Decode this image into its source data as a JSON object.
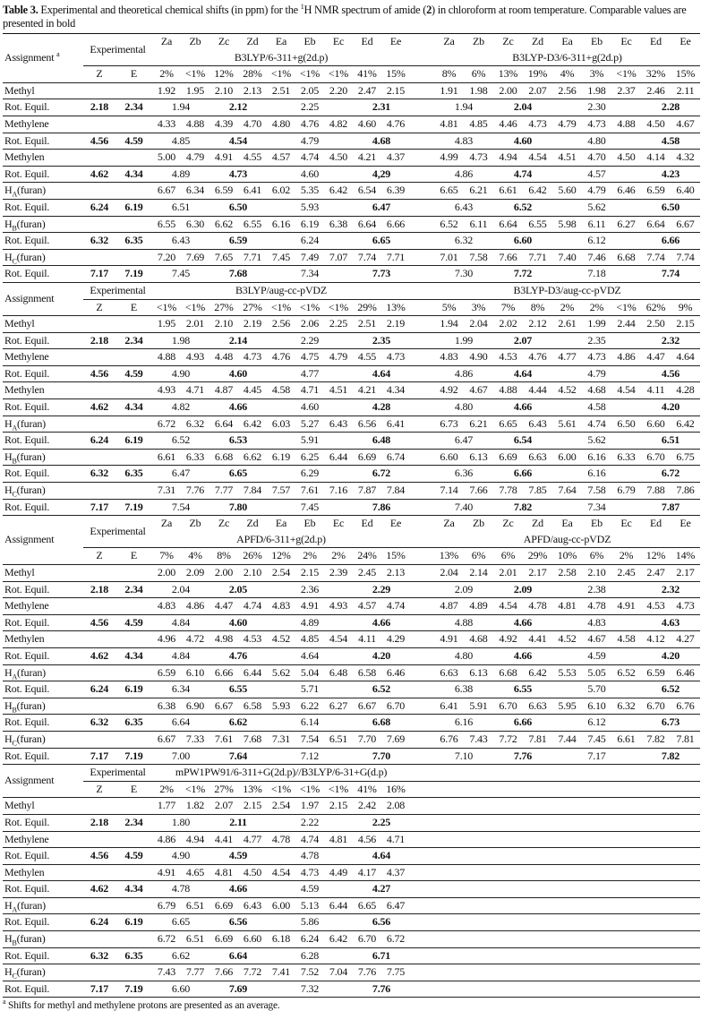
{
  "title": {
    "label": "Table 3.",
    "pre": " Experimental and theoretical chemical shifts (in ppm) for the ",
    "sup": "1",
    "mid": "H NMR spectrum of amide (",
    "bold": "2",
    "post": ") in chloroform at room temperature. Comparable values are presented in bold"
  },
  "labels": {
    "assignment": "Assignment",
    "assignment_note": "a",
    "experimental": "Experimental",
    "z": "Z",
    "e": "E",
    "rot": "Rot. Equil."
  },
  "conformers": [
    "Za",
    "Zb",
    "Zc",
    "Zd",
    "Ea",
    "Eb",
    "Ec",
    "Ed",
    "Ee"
  ],
  "rows": [
    {
      "label": "Methyl",
      "sub": "",
      "suffix": "",
      "exp": [
        "2.18",
        "2.34"
      ]
    },
    {
      "label": "Methylene",
      "sub": "",
      "suffix": "",
      "exp": [
        "4.56",
        "4.59"
      ]
    },
    {
      "label": "Methylen",
      "sub": "",
      "suffix": "",
      "exp": [
        "4.62",
        "4.34"
      ]
    },
    {
      "label": "H",
      "sub": "A",
      "suffix": "(furan)",
      "exp": [
        "6.24",
        "6.19"
      ]
    },
    {
      "label": "H",
      "sub": "B",
      "suffix": "(furan)",
      "exp": [
        "6.32",
        "6.35"
      ]
    },
    {
      "label": "H",
      "sub": "C",
      "suffix": "(furan)",
      "exp": [
        "7.17",
        "7.19"
      ]
    }
  ],
  "blocks": [
    {
      "show_conformers": true,
      "show_note": true,
      "methods": [
        {
          "name": "B3LYP/6-311+g(2d.p)",
          "pops": [
            "2%",
            "<1%",
            "12%",
            "28%",
            "<1%",
            "<1%",
            "<1%",
            "41%",
            "15%"
          ],
          "values": [
            [
              "1.92",
              "1.95",
              "2.10",
              "2.13",
              "2.51",
              "2.05",
              "2.20",
              "2.47",
              "2.15"
            ],
            [
              "4.33",
              "4.88",
              "4.39",
              "4.70",
              "4.80",
              "4.76",
              "4.82",
              "4.60",
              "4.76"
            ],
            [
              "5.00",
              "4.79",
              "4.91",
              "4.55",
              "4.57",
              "4.74",
              "4.50",
              "4.21",
              "4.37"
            ],
            [
              "6.67",
              "6.34",
              "6.59",
              "6.41",
              "6.02",
              "5.35",
              "6.42",
              "6.54",
              "6.39"
            ],
            [
              "6.55",
              "6.30",
              "6.62",
              "6.55",
              "6.16",
              "6.19",
              "6.38",
              "6.64",
              "6.66"
            ],
            [
              "7.20",
              "7.69",
              "7.65",
              "7.71",
              "7.45",
              "7.49",
              "7.07",
              "7.74",
              "7.71"
            ]
          ],
          "rot": [
            [
              "1.94",
              "2.12",
              "2.25",
              "2.31"
            ],
            [
              "4.85",
              "4.54",
              "4.79",
              "4.68"
            ],
            [
              "4.89",
              "4.73",
              "4.60",
              "4,29"
            ],
            [
              "6.51",
              "6.50",
              "5.93",
              "6.47"
            ],
            [
              "6.43",
              "6.59",
              "6.24",
              "6.65"
            ],
            [
              "7.45",
              "7.68",
              "7.34",
              "7.73"
            ]
          ]
        },
        {
          "name": "B3LYP-D3/6-311+g(2d.p)",
          "pops": [
            "8%",
            "6%",
            "13%",
            "19%",
            "4%",
            "3%",
            "<1%",
            "32%",
            "15%"
          ],
          "values": [
            [
              "1.91",
              "1.98",
              "2.00",
              "2.07",
              "2.56",
              "1.98",
              "2.37",
              "2.46",
              "2.11"
            ],
            [
              "4.81",
              "4.85",
              "4.46",
              "4.73",
              "4.79",
              "4.73",
              "4.88",
              "4.50",
              "4.67"
            ],
            [
              "4.99",
              "4.73",
              "4.94",
              "4.54",
              "4.51",
              "4.70",
              "4.50",
              "4.14",
              "4.32"
            ],
            [
              "6.65",
              "6.21",
              "6.61",
              "6.42",
              "5.60",
              "4.79",
              "6.46",
              "6.59",
              "6.40"
            ],
            [
              "6.52",
              "6.11",
              "6.64",
              "6.55",
              "5.98",
              "6.11",
              "6.27",
              "6.64",
              "6.67"
            ],
            [
              "7.01",
              "7.58",
              "7.66",
              "7.71",
              "7.40",
              "7.46",
              "6.68",
              "7.74",
              "7.74"
            ]
          ],
          "rot": [
            [
              "1.94",
              "2.04",
              "2.30",
              "2.28"
            ],
            [
              "4.83",
              "4.60",
              "4.80",
              "4.58"
            ],
            [
              "4.86",
              "4.74",
              "4.57",
              "4.23"
            ],
            [
              "6.43",
              "6.52",
              "5.62",
              "6.50"
            ],
            [
              "6.32",
              "6.60",
              "6.12",
              "6.66"
            ],
            [
              "7.30",
              "7.72",
              "7.18",
              "7.74"
            ]
          ]
        }
      ]
    },
    {
      "show_conformers": false,
      "show_note": false,
      "methods": [
        {
          "name": "B3LYP/aug-cc-pVDZ",
          "pops": [
            "<1%",
            "<1%",
            "27%",
            "27%",
            "<1%",
            "<1%",
            "<1%",
            "29%",
            "13%"
          ],
          "values": [
            [
              "1.95",
              "2.01",
              "2.10",
              "2.19",
              "2.56",
              "2.06",
              "2.25",
              "2.51",
              "2.19"
            ],
            [
              "4.88",
              "4.93",
              "4.48",
              "4.73",
              "4.76",
              "4.75",
              "4.79",
              "4.55",
              "4.73"
            ],
            [
              "4.93",
              "4.71",
              "4.87",
              "4.45",
              "4.58",
              "4.71",
              "4.51",
              "4.21",
              "4.34"
            ],
            [
              "6.72",
              "6.32",
              "6.64",
              "6.42",
              "6.03",
              "5.27",
              "6.43",
              "6.56",
              "6.41"
            ],
            [
              "6.61",
              "6.33",
              "6.68",
              "6.62",
              "6.19",
              "6.25",
              "6.44",
              "6.69",
              "6.74"
            ],
            [
              "7.31",
              "7.76",
              "7.77",
              "7.84",
              "7.57",
              "7.61",
              "7.16",
              "7.87",
              "7.84"
            ]
          ],
          "rot": [
            [
              "1.98",
              "2.14",
              "2.29",
              "2.35"
            ],
            [
              "4.90",
              "4.60",
              "4.77",
              "4.64"
            ],
            [
              "4.82",
              "4.66",
              "4.60",
              "4.28"
            ],
            [
              "6.52",
              "6.53",
              "5.91",
              "6.48"
            ],
            [
              "6.47",
              "6.65",
              "6.29",
              "6.72"
            ],
            [
              "7.54",
              "7.80",
              "7.45",
              "7.86"
            ]
          ]
        },
        {
          "name": "B3LYP-D3/aug-cc-pVDZ",
          "pops": [
            "5%",
            "3%",
            "7%",
            "8%",
            "2%",
            "2%",
            "<1%",
            "62%",
            "9%"
          ],
          "values": [
            [
              "1.94",
              "2.04",
              "2.02",
              "2.12",
              "2.61",
              "1.99",
              "2.44",
              "2.50",
              "2.15"
            ],
            [
              "4.83",
              "4.90",
              "4.53",
              "4.76",
              "4.77",
              "4.73",
              "4.86",
              "4.47",
              "4.64"
            ],
            [
              "4.92",
              "4.67",
              "4.88",
              "4.44",
              "4.52",
              "4.68",
              "4.54",
              "4.11",
              "4.28"
            ],
            [
              "6.73",
              "6.21",
              "6.65",
              "6.43",
              "5.61",
              "4.74",
              "6.50",
              "6.60",
              "6.42"
            ],
            [
              "6.60",
              "6.13",
              "6.69",
              "6.63",
              "6.00",
              "6.16",
              "6.33",
              "6.70",
              "6.75"
            ],
            [
              "7.14",
              "7.66",
              "7.78",
              "7.85",
              "7.64",
              "7.58",
              "6.79",
              "7.88",
              "7.86"
            ]
          ],
          "rot": [
            [
              "1.99",
              "2.07",
              "2.35",
              "2.32"
            ],
            [
              "4.86",
              "4.64",
              "4.79",
              "4.56"
            ],
            [
              "4.80",
              "4.66",
              "4.58",
              "4.20"
            ],
            [
              "6.47",
              "6.54",
              "5.62",
              "6.51"
            ],
            [
              "6.36",
              "6.66",
              "6.16",
              "6.72"
            ],
            [
              "7.40",
              "7.82",
              "7.34",
              "7.87"
            ]
          ]
        }
      ]
    },
    {
      "show_conformers": true,
      "show_note": false,
      "methods": [
        {
          "name": "APFD/6-311+g(2d.p)",
          "pops": [
            "7%",
            "4%",
            "8%",
            "26%",
            "12%",
            "2%",
            "2%",
            "24%",
            "15%"
          ],
          "values": [
            [
              "2.00",
              "2.09",
              "2.00",
              "2.10",
              "2.54",
              "2.15",
              "2.39",
              "2.45",
              "2.13"
            ],
            [
              "4.83",
              "4.86",
              "4.47",
              "4.74",
              "4.83",
              "4.91",
              "4.93",
              "4.57",
              "4.74"
            ],
            [
              "4.96",
              "4.72",
              "4.98",
              "4.53",
              "4.52",
              "4.85",
              "4.54",
              "4.11",
              "4.29"
            ],
            [
              "6.59",
              "6.10",
              "6.66",
              "6.44",
              "5.62",
              "5.04",
              "6.48",
              "6.58",
              "6.46"
            ],
            [
              "6.38",
              "6.90",
              "6.67",
              "6.58",
              "5.93",
              "6.22",
              "6.27",
              "6.67",
              "6.70"
            ],
            [
              "6.67",
              "7.33",
              "7.61",
              "7.68",
              "7.31",
              "7.54",
              "6.51",
              "7.70",
              "7.69"
            ]
          ],
          "rot": [
            [
              "2.04",
              "2.05",
              "2.36",
              "2.29"
            ],
            [
              "4.84",
              "4.60",
              "4.89",
              "4.66"
            ],
            [
              "4.84",
              "4.76",
              "4.64",
              "4.20"
            ],
            [
              "6.34",
              "6.55",
              "5.71",
              "6.52"
            ],
            [
              "6.64",
              "6.62",
              "6.14",
              "6.68"
            ],
            [
              "7.00",
              "7.64",
              "7.12",
              "7.70"
            ]
          ]
        },
        {
          "name": "APFD/aug-cc-pVDZ",
          "pops": [
            "13%",
            "6%",
            "6%",
            "29%",
            "10%",
            "6%",
            "2%",
            "12%",
            "14%"
          ],
          "values": [
            [
              "2.04",
              "2.14",
              "2.01",
              "2.17",
              "2.58",
              "2.10",
              "2.45",
              "2.47",
              "2.17"
            ],
            [
              "4.87",
              "4.89",
              "4.54",
              "4.78",
              "4.81",
              "4.78",
              "4.91",
              "4.53",
              "4.73"
            ],
            [
              "4.91",
              "4.68",
              "4.92",
              "4.41",
              "4.52",
              "4.67",
              "4.58",
              "4.12",
              "4.27"
            ],
            [
              "6.63",
              "6.13",
              "6.68",
              "6.42",
              "5.53",
              "5.05",
              "6.52",
              "6.59",
              "6.46"
            ],
            [
              "6.41",
              "5.91",
              "6.70",
              "6.63",
              "5.95",
              "6.10",
              "6.32",
              "6.70",
              "6.76"
            ],
            [
              "6.76",
              "7.43",
              "7.72",
              "7.81",
              "7.44",
              "7.45",
              "6.61",
              "7.82",
              "7.81"
            ]
          ],
          "rot": [
            [
              "2.09",
              "2.09",
              "2.38",
              "2.32"
            ],
            [
              "4.88",
              "4.66",
              "4.83",
              "4.63"
            ],
            [
              "4.80",
              "4.66",
              "4.59",
              "4.20"
            ],
            [
              "6.38",
              "6.55",
              "5.70",
              "6.52"
            ],
            [
              "6.16",
              "6.66",
              "6.12",
              "6.73"
            ],
            [
              "7.10",
              "7.76",
              "7.17",
              "7.82"
            ]
          ]
        }
      ]
    },
    {
      "show_conformers": false,
      "show_note": false,
      "methods": [
        {
          "name": "mPW1PW91/6-311+G(2d.p)//B3LYP/6-31+G(d.p)",
          "pops": [
            "2%",
            "<1%",
            "27%",
            "13%",
            "<1%",
            "<1%",
            "<1%",
            "41%",
            "16%"
          ],
          "values": [
            [
              "1.77",
              "1.82",
              "2.07",
              "2.15",
              "2.54",
              "1.97",
              "2.15",
              "2.42",
              "2.08"
            ],
            [
              "4.86",
              "4.94",
              "4.41",
              "4.77",
              "4.78",
              "4.74",
              "4.81",
              "4.56",
              "4.71"
            ],
            [
              "4.91",
              "4.65",
              "4.81",
              "4.50",
              "4.54",
              "4.73",
              "4.49",
              "4.17",
              "4.37"
            ],
            [
              "6.79",
              "6.51",
              "6.69",
              "6.43",
              "6.00",
              "5.13",
              "6.44",
              "6.65",
              "6.47"
            ],
            [
              "6.72",
              "6.51",
              "6.69",
              "6.60",
              "6.18",
              "6.24",
              "6.42",
              "6.70",
              "6.72"
            ],
            [
              "7.43",
              "7.77",
              "7.66",
              "7.72",
              "7.41",
              "7.52",
              "7.04",
              "7.76",
              "7.75"
            ]
          ],
          "rot": [
            [
              "1.80",
              "2.11",
              "2.22",
              "2.25"
            ],
            [
              "4.90",
              "4.59",
              "4.78",
              "4.64"
            ],
            [
              "4.78",
              "4.66",
              "4.59",
              "4.27"
            ],
            [
              "6.65",
              "6.56",
              "5.86",
              "6.56"
            ],
            [
              "6.62",
              "6.64",
              "6.28",
              "6.71"
            ],
            [
              "6.60",
              "7.69",
              "7.32",
              "7.76"
            ]
          ]
        }
      ]
    }
  ],
  "footnote": {
    "sup": "a",
    "text": " Shifts for methyl and methylene protons are presented as an average."
  }
}
